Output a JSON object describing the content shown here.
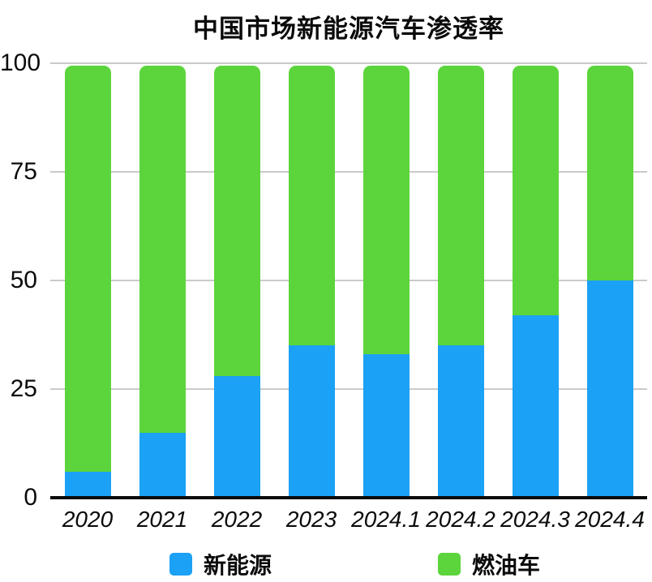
{
  "title": "中国市场新能源汽车渗透率",
  "chart_data": {
    "type": "bar",
    "stacked": true,
    "title": "中国市场新能源汽车渗透率",
    "categories": [
      "2020",
      "2021",
      "2022",
      "2023",
      "2024.1",
      "2024.2",
      "2024.3",
      "2024.4"
    ],
    "series": [
      {
        "name": "新能源",
        "color": "#1BA1F5",
        "values": [
          6,
          15,
          28,
          35,
          33,
          35,
          42,
          50
        ]
      },
      {
        "name": "燃油车",
        "color": "#5CD53C",
        "values": [
          94,
          85,
          72,
          65,
          67,
          65,
          58,
          50
        ]
      }
    ],
    "xlabel": "",
    "ylabel": "",
    "ylim": [
      0,
      100
    ],
    "yticks": [
      0,
      25,
      50,
      75,
      100
    ],
    "grid": true,
    "grid_color": "#cacaca",
    "axis_color": "#0a0a0a",
    "legend_position": "bottom"
  },
  "legend": {
    "items": [
      {
        "label": "新能源",
        "color": "#1BA1F5"
      },
      {
        "label": "燃油车",
        "color": "#5CD53C"
      }
    ]
  }
}
